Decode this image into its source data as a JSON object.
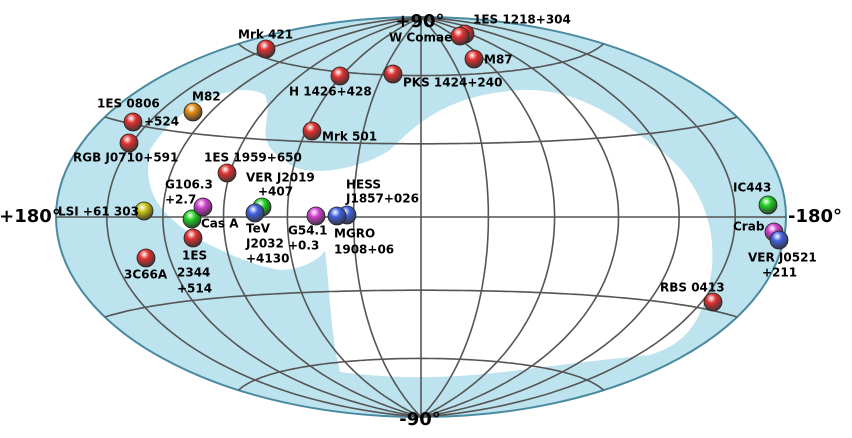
{
  "map": {
    "axis_labels": {
      "north": "+90°",
      "south": "-90°",
      "left": "+180°",
      "right": "-180°"
    },
    "sources": [
      {
        "lines": [
          "Mrk 421"
        ],
        "color": "#e03030"
      },
      {
        "lines": [
          "1ES 1218+304"
        ],
        "color": "#e03030"
      },
      {
        "lines": [
          "W Comae"
        ],
        "color": "#e03030"
      },
      {
        "lines": [
          "M87"
        ],
        "color": "#e03030"
      },
      {
        "lines": [
          "H 1426+428"
        ],
        "color": "#e03030"
      },
      {
        "lines": [
          "PKS 1424+240"
        ],
        "color": "#e03030"
      },
      {
        "lines": [
          "1ES 0806",
          "+524"
        ],
        "color": "#e03030"
      },
      {
        "lines": [
          "RGB J0710+591"
        ],
        "color": "#e03030"
      },
      {
        "lines": [
          "Mrk 501"
        ],
        "color": "#e03030"
      },
      {
        "lines": [
          "1ES 1959+650"
        ],
        "color": "#e03030"
      },
      {
        "lines": [
          "1ES",
          "2344",
          "+514"
        ],
        "color": "#e03030"
      },
      {
        "lines": [
          "3C66A"
        ],
        "color": "#e03030"
      },
      {
        "lines": [
          "RBS 0413"
        ],
        "color": "#e03030"
      },
      {
        "lines": [
          "M82"
        ],
        "color": "#e08a10"
      },
      {
        "lines": [
          "LSI +61 303"
        ],
        "color": "#c8c010"
      },
      {
        "lines": [
          "Cas A"
        ],
        "color": "#20d020"
      },
      {
        "lines": [
          "VER J2019",
          "+407"
        ],
        "color": "#20d020"
      },
      {
        "lines": [
          "IC443"
        ],
        "color": "#20d020"
      },
      {
        "lines": [
          "G106.3",
          "+2.7"
        ],
        "color": "#d040d0"
      },
      {
        "lines": [
          "G54.1",
          "+0.3"
        ],
        "color": "#d040d0"
      },
      {
        "lines": [
          "Crab"
        ],
        "color": "#d040d0"
      },
      {
        "lines": [
          "TeV",
          "J2032",
          "+4130"
        ],
        "color": "#4060e0"
      },
      {
        "lines": [
          "HESS",
          "J1857+026"
        ],
        "color": "#4060e0"
      },
      {
        "lines": [
          "MGRO",
          "1908+06"
        ],
        "color": "#4060e0"
      },
      {
        "lines": [
          "VER J0521",
          "+211"
        ],
        "color": "#4060e0"
      }
    ]
  }
}
